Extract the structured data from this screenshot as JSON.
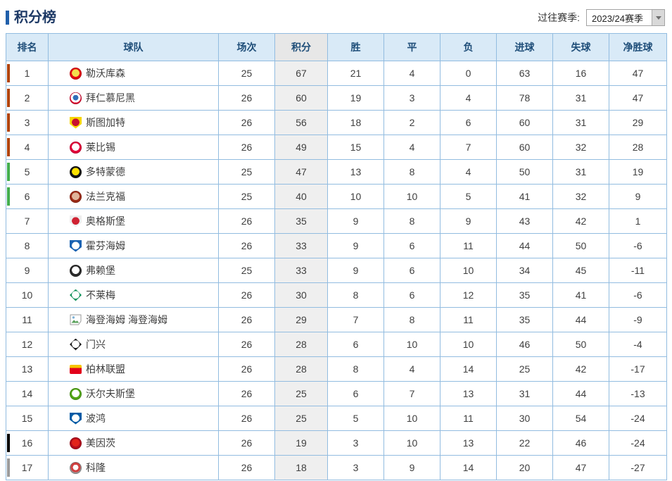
{
  "page": {
    "title": "积分榜",
    "season_label": "过往赛季:",
    "season_selected": "2023/24赛季"
  },
  "colors": {
    "title_accent": "#2160ab",
    "header_bg": "#d9eaf7",
    "header_text": "#1f4e79",
    "grid_border": "#92bce0",
    "points_col_bg": "#efefef",
    "zone_champions": "#b1440d",
    "zone_europa": "#43ae4d",
    "zone_playoff": "#000000",
    "zone_relegation": "#9b9b9b"
  },
  "table": {
    "headers": [
      "排名",
      "球队",
      "场次",
      "积分",
      "胜",
      "平",
      "负",
      "进球",
      "失球",
      "净胜球"
    ],
    "teams": [
      {
        "rank": "1",
        "name": "勒沃库森",
        "played": "25",
        "points": "67",
        "win": "21",
        "draw": "4",
        "loss": "0",
        "gf": "63",
        "ga": "16",
        "gd": "47",
        "marker": "#b1440d",
        "logo": {
          "shape": "circle",
          "colors": [
            "#f3dd4e",
            "#e30613"
          ]
        }
      },
      {
        "rank": "2",
        "name": "拜仁慕尼黑",
        "played": "26",
        "points": "60",
        "win": "19",
        "draw": "3",
        "loss": "4",
        "gf": "78",
        "ga": "31",
        "gd": "47",
        "marker": "#b1440d",
        "logo": {
          "shape": "circle",
          "colors": [
            "#2f6fb9",
            "#ffffff",
            "#dc052d"
          ]
        }
      },
      {
        "rank": "3",
        "name": "斯图加特",
        "played": "26",
        "points": "56",
        "win": "18",
        "draw": "2",
        "loss": "6",
        "gf": "60",
        "ga": "31",
        "gd": "29",
        "marker": "#b1440d",
        "logo": {
          "shape": "shield",
          "colors": [
            "#c8102e",
            "#f6d500"
          ]
        }
      },
      {
        "rank": "4",
        "name": "莱比锡",
        "played": "26",
        "points": "49",
        "win": "15",
        "draw": "4",
        "loss": "7",
        "gf": "60",
        "ga": "32",
        "gd": "28",
        "marker": "#b1440d",
        "logo": {
          "shape": "circle",
          "colors": [
            "#ffffff",
            "#e4003a"
          ]
        }
      },
      {
        "rank": "5",
        "name": "多特蒙德",
        "played": "25",
        "points": "47",
        "win": "13",
        "draw": "8",
        "loss": "4",
        "gf": "50",
        "ga": "31",
        "gd": "19",
        "marker": "#43ae4d",
        "logo": {
          "shape": "circle",
          "colors": [
            "#fde100",
            "#141414"
          ]
        }
      },
      {
        "rank": "6",
        "name": "法兰克福",
        "played": "25",
        "points": "40",
        "win": "10",
        "draw": "10",
        "loss": "5",
        "gf": "41",
        "ga": "32",
        "gd": "9",
        "marker": "#43ae4d",
        "logo": {
          "shape": "circle",
          "colors": [
            "#e0b49a",
            "#9c2b16"
          ]
        }
      },
      {
        "rank": "7",
        "name": "奥格斯堡",
        "played": "26",
        "points": "35",
        "win": "9",
        "draw": "8",
        "loss": "9",
        "gf": "43",
        "ga": "42",
        "gd": "1",
        "marker": null,
        "logo": {
          "shape": "shield",
          "colors": [
            "#cf2233",
            "#eeeeee"
          ]
        }
      },
      {
        "rank": "8",
        "name": "霍芬海姆",
        "played": "26",
        "points": "33",
        "win": "9",
        "draw": "6",
        "loss": "11",
        "gf": "44",
        "ga": "50",
        "gd": "-6",
        "marker": null,
        "logo": {
          "shape": "shield",
          "colors": [
            "#ffffff",
            "#1a63b2"
          ]
        }
      },
      {
        "rank": "9",
        "name": "弗赖堡",
        "played": "25",
        "points": "33",
        "win": "9",
        "draw": "6",
        "loss": "10",
        "gf": "34",
        "ga": "45",
        "gd": "-11",
        "marker": null,
        "logo": {
          "shape": "circle",
          "colors": [
            "#ffffff",
            "#2b2b2b"
          ]
        }
      },
      {
        "rank": "10",
        "name": "不莱梅",
        "played": "26",
        "points": "30",
        "win": "8",
        "draw": "6",
        "loss": "12",
        "gf": "35",
        "ga": "41",
        "gd": "-6",
        "marker": null,
        "logo": {
          "shape": "diamond",
          "colors": [
            "#ffffff",
            "#13935c"
          ]
        }
      },
      {
        "rank": "11",
        "name": "海登海姆",
        "alt": "海登海姆",
        "played": "26",
        "points": "29",
        "win": "7",
        "draw": "8",
        "loss": "11",
        "gf": "35",
        "ga": "44",
        "gd": "-9",
        "marker": null,
        "logo": {
          "shape": "broken",
          "colors": []
        }
      },
      {
        "rank": "12",
        "name": "门兴",
        "played": "26",
        "points": "28",
        "win": "6",
        "draw": "10",
        "loss": "10",
        "gf": "46",
        "ga": "50",
        "gd": "-4",
        "marker": null,
        "logo": {
          "shape": "diamond",
          "colors": [
            "#ffffff",
            "#1a1a1a"
          ]
        }
      },
      {
        "rank": "13",
        "name": "柏林联盟",
        "played": "26",
        "points": "28",
        "win": "8",
        "draw": "4",
        "loss": "14",
        "gf": "25",
        "ga": "42",
        "gd": "-17",
        "marker": null,
        "logo": {
          "shape": "flag",
          "colors": [
            "#e2001a",
            "#f6c500"
          ]
        }
      },
      {
        "rank": "14",
        "name": "沃尔夫斯堡",
        "played": "26",
        "points": "25",
        "win": "6",
        "draw": "7",
        "loss": "13",
        "gf": "31",
        "ga": "44",
        "gd": "-13",
        "marker": null,
        "logo": {
          "shape": "circle",
          "colors": [
            "#ffffff",
            "#52a616"
          ]
        }
      },
      {
        "rank": "15",
        "name": "波鸿",
        "played": "26",
        "points": "25",
        "win": "5",
        "draw": "10",
        "loss": "11",
        "gf": "30",
        "ga": "54",
        "gd": "-24",
        "marker": null,
        "logo": {
          "shape": "shield",
          "colors": [
            "#ffffff",
            "#005ba5"
          ]
        }
      },
      {
        "rank": "16",
        "name": "美因茨",
        "played": "26",
        "points": "19",
        "win": "3",
        "draw": "10",
        "loss": "13",
        "gf": "22",
        "ga": "46",
        "gd": "-24",
        "marker": "#000000",
        "logo": {
          "shape": "circle",
          "colors": [
            "#e2231a",
            "#b30d1c"
          ]
        }
      },
      {
        "rank": "17",
        "name": "科隆",
        "played": "26",
        "points": "18",
        "win": "3",
        "draw": "9",
        "loss": "14",
        "gf": "20",
        "ga": "47",
        "gd": "-27",
        "marker": "#9b9b9b",
        "logo": {
          "shape": "circle",
          "colors": [
            "#ffffff",
            "#d04040",
            "#9a9a9a"
          ]
        }
      }
    ]
  }
}
